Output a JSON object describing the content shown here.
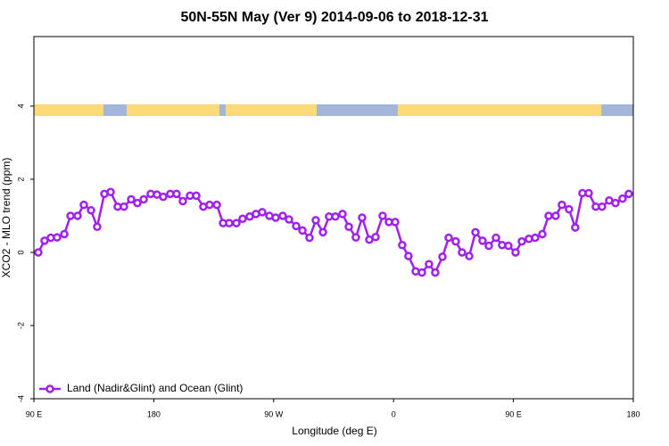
{
  "chart_data": {
    "type": "line",
    "title": "50N-55N May (Ver 9)   2014-09-06 to 2018-12-31",
    "x_label": "Longitude (deg E)",
    "y_label": "XCO2 - MLO trend (ppm)",
    "xlim": [
      90,
      540
    ],
    "xticks": [
      {
        "value": 90,
        "label": "90 E"
      },
      {
        "value": 180,
        "label": "180"
      },
      {
        "value": 270,
        "label": "90 W"
      },
      {
        "value": 360,
        "label": "0"
      },
      {
        "value": 450,
        "label": "90 E"
      },
      {
        "value": 540,
        "label": "180"
      }
    ],
    "ylim": [
      -4,
      5.9
    ],
    "yticks": [
      -4,
      -2,
      0,
      2,
      4
    ],
    "legend": "bottom-left",
    "x": [
      93.3,
      98.0,
      102.7,
      107.4,
      112.8,
      117.5,
      122.8,
      127.5,
      132.9,
      137.5,
      142.9,
      147.6,
      152.9,
      157.6,
      163.0,
      167.7,
      172.4,
      177.7,
      182.4,
      187.1,
      192.4,
      197.1,
      201.8,
      207.2,
      211.9,
      217.2,
      221.9,
      227.3,
      232.0,
      236.6,
      242.0,
      246.7,
      252.0,
      256.7,
      261.4,
      266.8,
      271.5,
      276.8,
      281.5,
      286.9,
      291.6,
      296.9,
      301.6,
      307.0,
      311.6,
      316.3,
      321.7,
      326.4,
      331.7,
      336.4,
      341.8,
      346.5,
      351.8,
      356.5,
      361.2,
      366.5,
      371.2,
      376.6,
      381.3,
      386.6,
      391.3,
      396.7,
      401.4,
      406.7,
      411.4,
      416.8,
      421.5,
      426.8,
      431.5,
      436.9,
      441.5,
      446.2,
      451.6,
      456.3,
      461.6,
      466.3,
      471.7,
      476.4,
      481.7,
      486.4,
      491.7,
      496.4,
      501.8,
      506.5,
      511.8,
      516.5,
      521.9,
      526.6,
      531.9,
      536.6
    ],
    "series": [
      {
        "name": "Land (Nadir&Glint) and Ocean (Glint)",
        "color": "#a020f0",
        "values": [
          0.0,
          0.32,
          0.4,
          0.41,
          0.5,
          1.0,
          1.0,
          1.3,
          1.15,
          0.7,
          1.6,
          1.65,
          1.25,
          1.25,
          1.45,
          1.35,
          1.45,
          1.6,
          1.58,
          1.52,
          1.6,
          1.6,
          1.4,
          1.55,
          1.55,
          1.25,
          1.3,
          1.3,
          0.8,
          0.8,
          0.8,
          0.92,
          0.98,
          1.05,
          1.1,
          1.0,
          0.95,
          1.0,
          0.9,
          0.72,
          0.6,
          0.4,
          0.88,
          0.55,
          0.98,
          0.98,
          1.05,
          0.7,
          0.41,
          0.95,
          0.35,
          0.42,
          1.0,
          0.83,
          0.83,
          0.2,
          -0.1,
          -0.52,
          -0.55,
          -0.32,
          -0.55,
          -0.12,
          0.4,
          0.3,
          0.0,
          -0.1,
          0.55,
          0.32,
          0.18,
          0.4,
          0.2,
          0.18,
          0.0,
          0.3,
          0.37,
          0.4,
          0.5,
          1.0,
          1.0,
          1.3,
          1.18,
          0.68,
          1.62,
          1.62,
          1.25,
          1.25,
          1.42,
          1.35,
          1.47,
          1.6
        ]
      }
    ]
  }
}
